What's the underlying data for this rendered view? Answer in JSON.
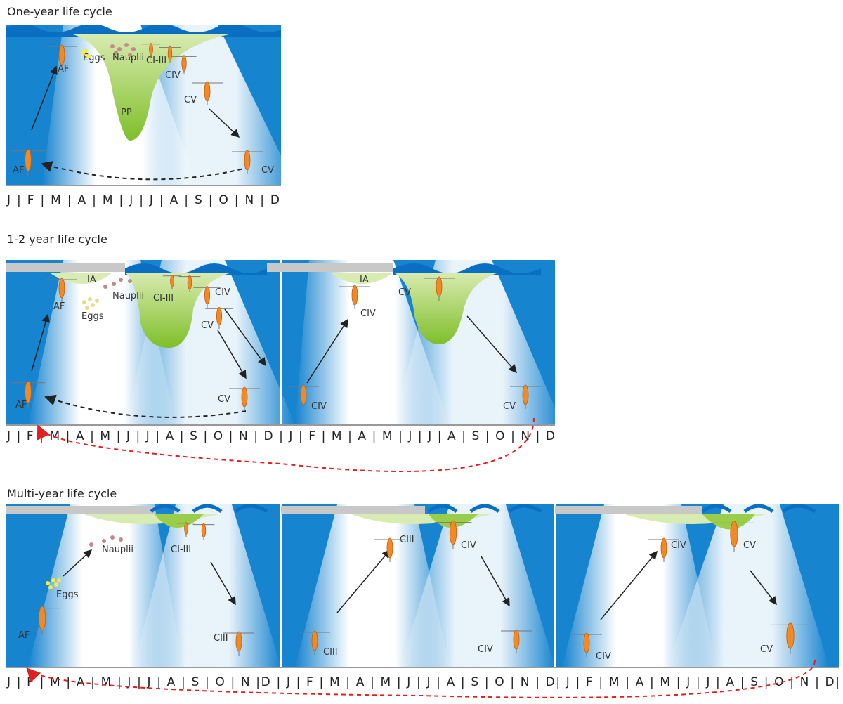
{
  "panels": [
    {
      "title": "One-year life cycle",
      "labels": [
        "AF",
        "Eggs",
        "Nauplii",
        "CI-III",
        "CIV",
        "CV",
        "PP",
        "AF",
        "CV"
      ],
      "months": "J | F | M | A | M | J | J | A | S | O | N | D"
    },
    {
      "title": "1-2 year life cycle",
      "labels": [
        "IA",
        "AF",
        "Nauplii",
        "Eggs",
        "CI-III",
        "CIV",
        "CV",
        "AF",
        "CV",
        "IA",
        "CIV",
        "CV",
        "CIV",
        "CV"
      ],
      "months": "J | F | M | A | M | J | J | A | S | O | N | D | J | F | M | A | M | J | J | A | S | O | N | D"
    },
    {
      "title": "Multi-year life cycle",
      "labels": [
        "Nauplii",
        "CI-III",
        "Eggs",
        "AF",
        "CIII",
        "CIII",
        "CIV",
        "CIII",
        "CIV",
        "CIV",
        "CV",
        "CIV",
        "CV"
      ],
      "months": "J | F | M | A | M | J | J | A | S | O | N |D | J | F | M | A | M | J | J | A | S | O | N | D| J | F | M | A | M | J | J | A | S | O | N | D|"
    }
  ]
}
